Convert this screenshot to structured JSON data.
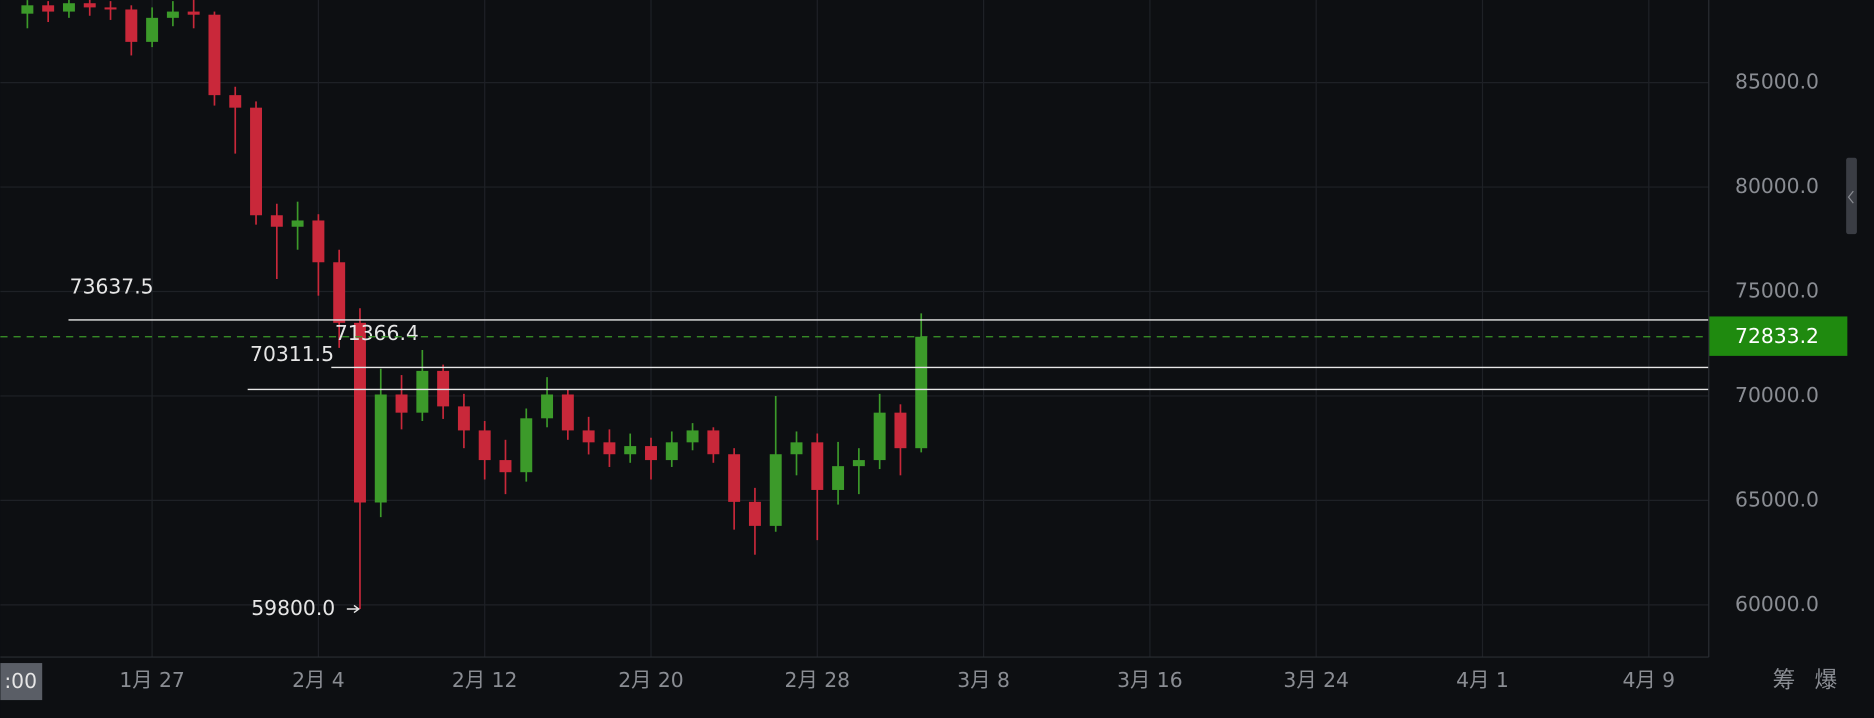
{
  "chart_data": {
    "type": "candlestick",
    "ylim": [
      57500,
      89000
    ],
    "yticks": [
      {
        "value": 60000,
        "label": "60000.0"
      },
      {
        "value": 65000,
        "label": "65000.0"
      },
      {
        "value": 70000,
        "label": "70000.0"
      },
      {
        "value": 75000,
        "label": "75000.0"
      },
      {
        "value": 80000,
        "label": "80000.0"
      },
      {
        "value": 85000,
        "label": "85000.0"
      }
    ],
    "xticks": [
      "1月 27",
      "2月 4",
      "2月 12",
      "2月 20",
      "2月 28",
      "3月 8",
      "3月 16",
      "3月 24",
      "4月 1",
      "4月 9"
    ],
    "grid": true,
    "up_color": "#3c9a2a",
    "down_color": "#c9283a",
    "x": [
      "1月 21",
      "1月 22",
      "1月 23",
      "1月 24",
      "1月 25",
      "1月 26",
      "1月 27",
      "1月 28",
      "1月 29",
      "1月 30",
      "1月 31",
      "2月 1",
      "2月 2",
      "2月 3",
      "2月 4",
      "2月 5",
      "2月 6",
      "2月 7",
      "2月 8",
      "2月 9",
      "2月 10",
      "2月 11",
      "2月 12",
      "2月 13",
      "2月 14",
      "2月 15",
      "2月 16",
      "2月 17",
      "2月 18",
      "2月 19",
      "2月 20",
      "2月 21",
      "2月 22",
      "2月 23",
      "2月 24",
      "2月 25",
      "2月 26",
      "2月 27",
      "2月 28",
      "3月 1",
      "3月 2",
      "3月 3",
      "3月 4",
      "3月 5"
    ],
    "open": [
      88300,
      88700,
      88400,
      88800,
      88600,
      88500,
      86950,
      88100,
      88400,
      88250,
      84400,
      83800,
      78650,
      78100,
      78400,
      76400,
      73500,
      64900,
      70070,
      69200,
      71200,
      69500,
      68350,
      66930,
      66350,
      68930,
      70070,
      68350,
      67780,
      67210,
      67600,
      66930,
      67780,
      68350,
      67210,
      64930,
      63780,
      67210,
      67780,
      65500,
      66640,
      66930,
      69200,
      67500
    ],
    "high": [
      88950,
      88900,
      89000,
      89000,
      88900,
      88700,
      88600,
      88900,
      89000,
      88400,
      84800,
      84100,
      79200,
      79300,
      78700,
      77000,
      74200,
      71300,
      71000,
      72200,
      71500,
      70100,
      68800,
      67900,
      69400,
      70900,
      70300,
      69000,
      68400,
      68200,
      68000,
      68300,
      68700,
      68500,
      67500,
      65600,
      70000,
      68300,
      68200,
      67800,
      67500,
      70100,
      69600,
      73950
    ],
    "low": [
      87600,
      87900,
      88100,
      88200,
      88000,
      86300,
      86700,
      87700,
      87600,
      83900,
      81600,
      78200,
      75600,
      77000,
      74800,
      72300,
      59800,
      64200,
      68400,
      68800,
      68900,
      67500,
      66000,
      65300,
      65900,
      68500,
      67900,
      67200,
      66600,
      66800,
      66000,
      66600,
      67400,
      66800,
      63600,
      62400,
      63500,
      66200,
      63100,
      64800,
      65300,
      66500,
      66200,
      67300
    ],
    "close": [
      88700,
      88400,
      88800,
      88600,
      88500,
      86950,
      88100,
      88400,
      88250,
      84400,
      83800,
      78650,
      78100,
      78400,
      76400,
      73500,
      64900,
      70070,
      69200,
      71200,
      69500,
      68350,
      66930,
      66350,
      68930,
      70070,
      68350,
      67780,
      67210,
      67600,
      66930,
      67780,
      68350,
      67210,
      64930,
      63780,
      67210,
      67780,
      65500,
      66640,
      66930,
      69200,
      67500,
      72833.2
    ],
    "price_lines": [
      73637.5,
      71366.4,
      70311.5
    ],
    "current_price": 72833.2,
    "low_marker": {
      "value": 59800,
      "label": "59800.0"
    }
  },
  "ui": {
    "time_label": ":00",
    "side_buttons": [
      "筹",
      "爆"
    ]
  }
}
